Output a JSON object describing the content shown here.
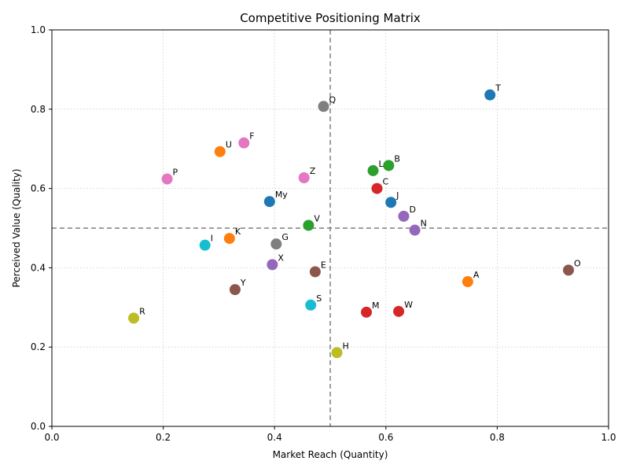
{
  "chart_data": {
    "type": "scatter",
    "title": "Competitive Positioning Matrix",
    "xlabel": "Market Reach (Quantity)",
    "ylabel": "Perceived Value (Quality)",
    "xlim": [
      0,
      1
    ],
    "ylim": [
      0,
      1
    ],
    "xticks": [
      "0.0",
      "0.2",
      "0.4",
      "0.6",
      "0.8",
      "1.0"
    ],
    "yticks": [
      "0.0",
      "0.2",
      "0.4",
      "0.6",
      "0.8",
      "1.0"
    ],
    "grid": true,
    "reference_lines": {
      "x": 0.5,
      "y": 0.5
    },
    "points": [
      {
        "label": "T",
        "x": 0.787,
        "y": 0.836,
        "color": "#1f77b4"
      },
      {
        "label": "Q",
        "x": 0.488,
        "y": 0.807,
        "color": "#7f7f7f"
      },
      {
        "label": "F",
        "x": 0.345,
        "y": 0.715,
        "color": "#e377c2"
      },
      {
        "label": "U",
        "x": 0.302,
        "y": 0.693,
        "color": "#ff7f0e"
      },
      {
        "label": "B",
        "x": 0.605,
        "y": 0.658,
        "color": "#2ca02c"
      },
      {
        "label": "L",
        "x": 0.577,
        "y": 0.645,
        "color": "#2ca02c"
      },
      {
        "label": "Z",
        "x": 0.453,
        "y": 0.627,
        "color": "#e377c2"
      },
      {
        "label": "P",
        "x": 0.207,
        "y": 0.624,
        "color": "#e377c2"
      },
      {
        "label": "C",
        "x": 0.584,
        "y": 0.6,
        "color": "#d62728"
      },
      {
        "label": "My",
        "x": 0.391,
        "y": 0.567,
        "color": "#1f77b4"
      },
      {
        "label": "J",
        "x": 0.609,
        "y": 0.565,
        "color": "#1f77b4"
      },
      {
        "label": "D",
        "x": 0.632,
        "y": 0.53,
        "color": "#9467bd"
      },
      {
        "label": "V",
        "x": 0.461,
        "y": 0.507,
        "color": "#2ca02c"
      },
      {
        "label": "N",
        "x": 0.652,
        "y": 0.495,
        "color": "#9467bd"
      },
      {
        "label": "K",
        "x": 0.319,
        "y": 0.474,
        "color": "#ff7f0e"
      },
      {
        "label": "G",
        "x": 0.403,
        "y": 0.46,
        "color": "#7f7f7f"
      },
      {
        "label": "I",
        "x": 0.275,
        "y": 0.457,
        "color": "#17becf"
      },
      {
        "label": "X",
        "x": 0.396,
        "y": 0.408,
        "color": "#9467bd"
      },
      {
        "label": "O",
        "x": 0.928,
        "y": 0.394,
        "color": "#8c564b"
      },
      {
        "label": "E",
        "x": 0.473,
        "y": 0.39,
        "color": "#8c564b"
      },
      {
        "label": "A",
        "x": 0.747,
        "y": 0.365,
        "color": "#ff7f0e"
      },
      {
        "label": "Y",
        "x": 0.329,
        "y": 0.345,
        "color": "#8c564b"
      },
      {
        "label": "S",
        "x": 0.465,
        "y": 0.306,
        "color": "#17becf"
      },
      {
        "label": "W",
        "x": 0.623,
        "y": 0.29,
        "color": "#d62728"
      },
      {
        "label": "M",
        "x": 0.565,
        "y": 0.288,
        "color": "#d62728"
      },
      {
        "label": "R",
        "x": 0.147,
        "y": 0.273,
        "color": "#bcbd22"
      },
      {
        "label": "H",
        "x": 0.512,
        "y": 0.186,
        "color": "#bcbd22"
      }
    ]
  }
}
